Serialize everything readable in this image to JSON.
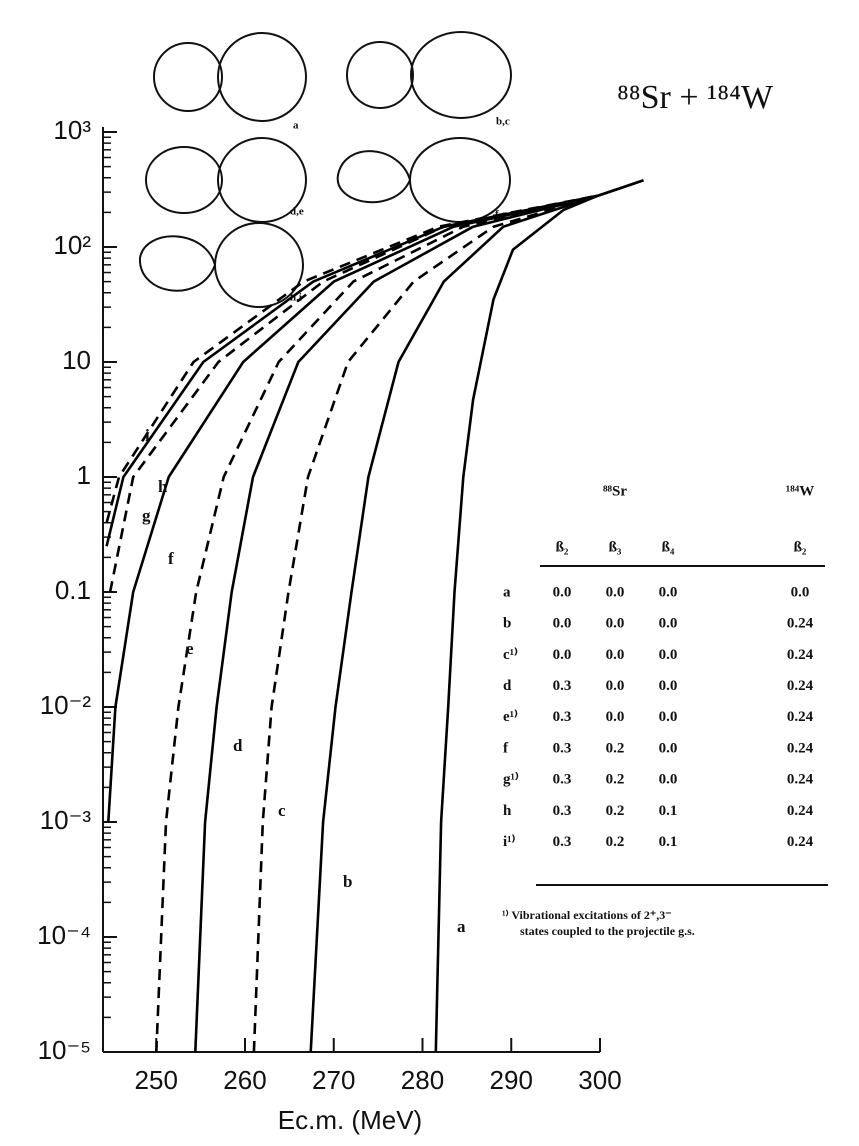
{
  "chart_data": {
    "type": "line",
    "title": "⁸⁸Sr + ¹⁸⁴W",
    "x_label": "Ec.m. (MeV)",
    "log_y": true,
    "xlim": [
      244,
      300
    ],
    "ylim": [
      1e-05,
      1000
    ],
    "xticks": [
      250,
      260,
      270,
      280,
      290,
      300
    ],
    "yticks": [
      {
        "value": 1000,
        "label": "10³"
      },
      {
        "value": 100,
        "label": "10²"
      },
      10,
      1,
      0.1,
      {
        "value": 0.01,
        "label": "10⁻²"
      },
      {
        "value": 0.001,
        "label": "10⁻³"
      },
      {
        "value": 0.0001,
        "label": "10⁻⁴"
      },
      {
        "value": 1e-05,
        "label": "10⁻⁵"
      }
    ],
    "series": [
      {
        "name": "a",
        "color": "#000000",
        "dashed": false,
        "x": [
          281.5,
          282.1,
          282.9,
          283.6,
          284.6,
          285.7,
          288,
          290.2,
          295.9,
          299.8,
          304.9
        ],
        "values": [
          1e-05,
          0.001,
          0.01,
          0.1,
          1,
          4.7,
          35,
          95,
          210,
          280,
          380
        ]
      },
      {
        "name": "b",
        "color": "#000000",
        "dashed": false,
        "x": [
          267.4,
          268.8,
          270.2,
          272,
          273.9,
          277.3,
          282.4,
          289.1,
          299.8,
          304.9
        ],
        "values": [
          1e-05,
          0.001,
          0.01,
          0.1,
          1,
          10,
          50,
          150,
          280,
          380
        ]
      },
      {
        "name": "c",
        "color": "#000000",
        "dashed": true,
        "x": [
          261,
          262,
          263,
          264.9,
          267.1,
          271.6,
          279,
          288,
          299.8
        ],
        "values": [
          1e-05,
          0.001,
          0.01,
          0.1,
          1,
          10,
          50,
          150,
          280
        ]
      },
      {
        "name": "d",
        "color": "#000000",
        "dashed": false,
        "x": [
          254.4,
          255.5,
          256.8,
          258.5,
          260.9,
          266,
          274.5,
          285.7,
          299.8
        ],
        "values": [
          1e-05,
          0.001,
          0.01,
          0.1,
          1,
          10,
          50,
          150,
          280
        ]
      },
      {
        "name": "e",
        "color": "#000000",
        "dashed": true,
        "x": [
          250,
          251.1,
          252.5,
          254.5,
          257.6,
          263.8,
          272.2,
          284.6,
          299.8
        ],
        "values": [
          1e-05,
          0.001,
          0.01,
          0.1,
          1,
          10,
          50,
          150,
          280
        ]
      },
      {
        "name": "f",
        "color": "#000000",
        "dashed": false,
        "x": [
          244.6,
          245.4,
          247.4,
          251.4,
          259.8,
          270,
          283.5,
          299.8
        ],
        "values": [
          0.001,
          0.01,
          0.1,
          1,
          10,
          50,
          150,
          280
        ]
      },
      {
        "name": "g",
        "color": "#000000",
        "dashed": true,
        "x": [
          244.8,
          247.4,
          257,
          268.8,
          282.4,
          299.8
        ],
        "values": [
          0.1,
          1,
          10,
          50,
          150,
          280
        ]
      },
      {
        "name": "h",
        "color": "#000000",
        "dashed": false,
        "x": [
          244.4,
          246.3,
          255.3,
          267.7,
          282.4,
          299.8
        ],
        "values": [
          0.25,
          1,
          10,
          50,
          150,
          280
        ]
      },
      {
        "name": "i",
        "color": "#000000",
        "dashed": true,
        "x": [
          244.4,
          245.8,
          254.2,
          266.6,
          281.8,
          299.8
        ],
        "values": [
          0.4,
          1,
          10,
          50,
          150,
          280
        ]
      }
    ]
  },
  "shapes": [
    "a",
    "b,c",
    "d,e",
    "f,g",
    "h,i"
  ],
  "table": {
    "groups": [
      "⁸⁸Sr",
      "¹⁸⁴W"
    ],
    "columns": [
      "ß₂",
      "ß₃",
      "ß₄",
      "ß₂"
    ],
    "rows": [
      [
        "a",
        "0.0",
        "0.0",
        "0.0",
        "0.0"
      ],
      [
        "b",
        "0.0",
        "0.0",
        "0.0",
        "0.24"
      ],
      [
        "c¹⁾",
        "0.0",
        "0.0",
        "0.0",
        "0.24"
      ],
      [
        "d",
        "0.3",
        "0.0",
        "0.0",
        "0.24"
      ],
      [
        "e¹⁾",
        "0.3",
        "0.0",
        "0.0",
        "0.24"
      ],
      [
        "f",
        "0.3",
        "0.2",
        "0.0",
        "0.24"
      ],
      [
        "g¹⁾",
        "0.3",
        "0.2",
        "0.0",
        "0.24"
      ],
      [
        "h",
        "0.3",
        "0.2",
        "0.1",
        "0.24"
      ],
      [
        "i¹⁾",
        "0.3",
        "0.2",
        "0.1",
        "0.24"
      ]
    ],
    "footnote": [
      "¹⁾ Vibrational excitations of 2⁺,3⁻",
      "states coupled to the projectile g.s."
    ]
  }
}
